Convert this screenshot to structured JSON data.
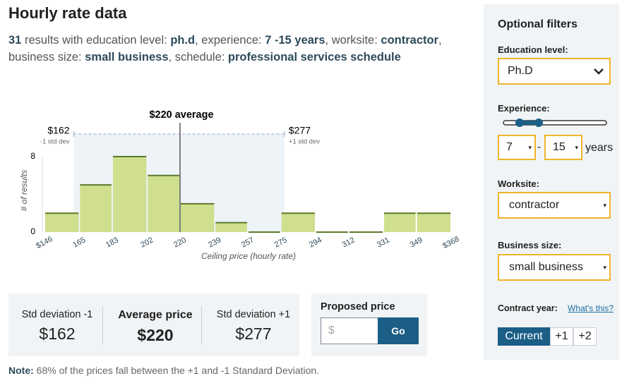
{
  "header": {
    "title": "Hourly rate data",
    "summary": [
      {
        "text": "31",
        "bold": true
      },
      {
        "text": " results with education level: ",
        "bold": false
      },
      {
        "text": "ph.d",
        "bold": true
      },
      {
        "text": ", experience: ",
        "bold": false
      },
      {
        "text": "7 -15 years",
        "bold": true
      },
      {
        "text": ", worksite: ",
        "bold": false
      },
      {
        "text": "contractor",
        "bold": true
      },
      {
        "text": ", business size: ",
        "bold": false
      },
      {
        "text": "small business",
        "bold": true
      },
      {
        "text": ", schedule: ",
        "bold": false
      },
      {
        "text": "professional services schedule",
        "bold": true
      }
    ]
  },
  "chart_data": {
    "type": "histogram",
    "bins": [
      146,
      165,
      183,
      202,
      220,
      239,
      257,
      275,
      294,
      312,
      331,
      349,
      368
    ],
    "values": [
      2,
      5,
      8,
      6,
      3,
      1,
      0,
      2,
      0,
      0,
      2,
      2
    ],
    "color": "#cfdf8e",
    "edge_color": "#5b7a2b",
    "xlim": [
      146,
      368
    ],
    "xticks": [
      {
        "value": 146,
        "label": "$146"
      },
      165,
      183,
      202,
      220,
      239,
      257,
      275,
      294,
      312,
      331,
      349,
      {
        "value": 368,
        "label": "$368"
      }
    ],
    "ylim": [
      0,
      8
    ],
    "yticks": [
      0,
      8
    ],
    "xlabel": "Ceiling price (hourly rate)",
    "ylabel": "# of results",
    "average": {
      "value": 220,
      "label": "$220 average"
    },
    "std_low": {
      "value": 162,
      "label": "$162",
      "note": "-1 std dev"
    },
    "std_high": {
      "value": 277,
      "label": "$277",
      "note": "+1 std dev"
    }
  },
  "stats": [
    {
      "label": "Std deviation -1",
      "value": "$162",
      "bold": false
    },
    {
      "label": "Average price",
      "value": "$220",
      "bold": true
    },
    {
      "label": "Std deviation +1",
      "value": "$277",
      "bold": false
    }
  ],
  "proposed": {
    "title": "Proposed price",
    "placeholder": "$",
    "button": "Go"
  },
  "note": {
    "label": "Note:",
    "text": " 68% of the prices fall between the +1 and -1 Standard Deviation."
  },
  "filters": {
    "title": "Optional filters",
    "education": {
      "label": "Education level:",
      "value": "Ph.D"
    },
    "experience": {
      "label": "Experience:",
      "min": "7",
      "sep": "-",
      "max": "15",
      "unit": "years"
    },
    "worksite": {
      "label": "Worksite:",
      "value": "contractor"
    },
    "business": {
      "label": "Business size:",
      "value": "small business"
    },
    "contract_year": {
      "label": "Contract year:",
      "link": "What's this?",
      "options": [
        "Current",
        "+1",
        "+2"
      ]
    }
  }
}
